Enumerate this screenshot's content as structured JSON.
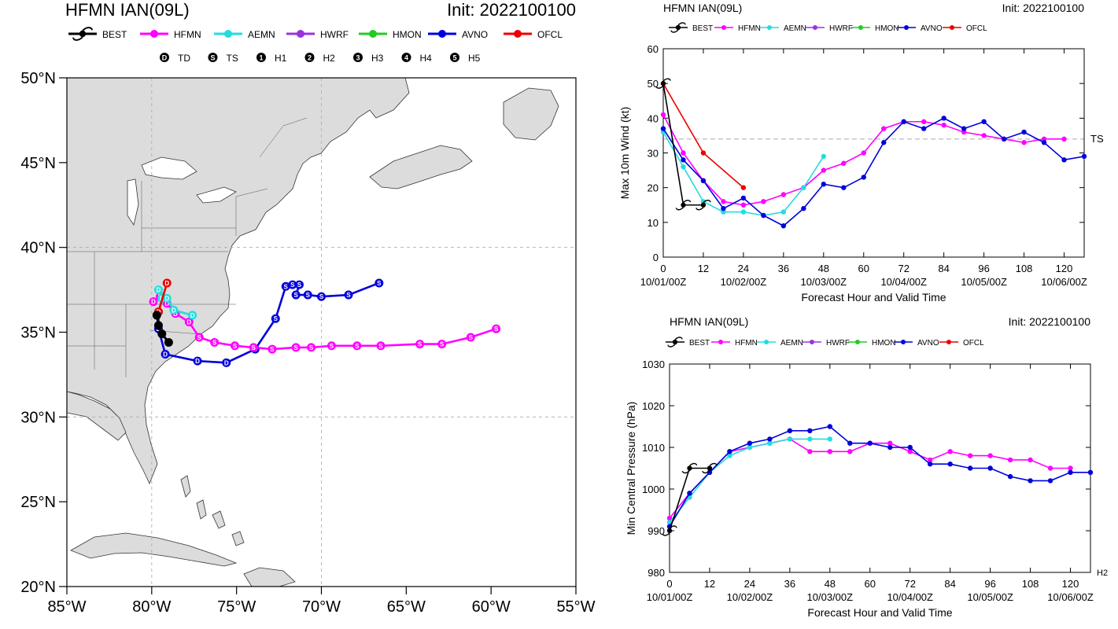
{
  "map_panel": {
    "title_left": "HFMN IAN(09L)",
    "title_right": "Init: 2022100100",
    "legend": [
      "BEST",
      "HFMN",
      "AEMN",
      "HWRF",
      "HMON",
      "AVNO",
      "OFCL"
    ],
    "intensity_legend": [
      {
        "symbol": "D",
        "label": "TD"
      },
      {
        "symbol": "S",
        "label": "TS"
      },
      {
        "symbol": "1",
        "label": "H1"
      },
      {
        "symbol": "2",
        "label": "H2"
      },
      {
        "symbol": "3",
        "label": "H3"
      },
      {
        "symbol": "4",
        "label": "H4"
      },
      {
        "symbol": "5",
        "label": "H5"
      }
    ],
    "lat_labels": [
      "50°N",
      "45°N",
      "40°N",
      "35°N",
      "30°N",
      "25°N",
      "20°N"
    ],
    "lon_labels": [
      "85°W",
      "80°W",
      "75°W",
      "70°W",
      "65°W",
      "60°W",
      "55°W"
    ]
  },
  "colors": {
    "BEST": "#000000",
    "HFMN": "#ff00ff",
    "AEMN": "#22dddd",
    "HWRF": "#9933dd",
    "HMON": "#22cc22",
    "AVNO": "#0000dd",
    "OFCL": "#ee0000",
    "land": "#dcdcdc",
    "ocean": "#ffffff"
  },
  "chart_data": [
    {
      "type": "line",
      "title": "HFMN IAN(09L)",
      "subtitle": "Init: 2022100100",
      "xlabel": "Forecast Hour and Valid Time",
      "ylabel": "Max 10m Wind (kt)",
      "xlim": [
        0,
        126
      ],
      "ylim": [
        0,
        60
      ],
      "xticks": [
        0,
        12,
        24,
        36,
        48,
        60,
        72,
        84,
        96,
        108,
        120
      ],
      "xtick_labels": [
        "0",
        "12",
        "24",
        "36",
        "48",
        "60",
        "72",
        "84",
        "96",
        "108",
        "120"
      ],
      "date_labels": [
        {
          "x": 0,
          "label": "10/01/00Z"
        },
        {
          "x": 24,
          "label": "10/02/00Z"
        },
        {
          "x": 48,
          "label": "10/03/00Z"
        },
        {
          "x": 72,
          "label": "10/04/00Z"
        },
        {
          "x": 96,
          "label": "10/05/00Z"
        },
        {
          "x": 120,
          "label": "10/06/00Z"
        }
      ],
      "yticks": [
        0,
        10,
        20,
        30,
        40,
        50,
        60
      ],
      "reference_line": {
        "y": 34,
        "label": "TS"
      },
      "series": [
        {
          "name": "BEST",
          "x": [
            0,
            6,
            12
          ],
          "y": [
            50,
            15,
            15
          ]
        },
        {
          "name": "HFMN",
          "x": [
            0,
            6,
            12,
            18,
            24,
            30,
            36,
            42,
            48,
            54,
            60,
            66,
            72,
            78,
            84,
            90,
            96,
            102,
            108,
            114,
            120
          ],
          "y": [
            41,
            30,
            22,
            16,
            15,
            16,
            18,
            20,
            25,
            27,
            30,
            37,
            39,
            39,
            38,
            36,
            35,
            34,
            33,
            34,
            34
          ]
        },
        {
          "name": "AEMN",
          "x": [
            0,
            6,
            12,
            18,
            24,
            30,
            36,
            42,
            48
          ],
          "y": [
            36,
            26,
            16,
            13,
            13,
            12,
            13,
            20,
            29
          ]
        },
        {
          "name": "AVNO",
          "x": [
            0,
            6,
            12,
            18,
            24,
            30,
            36,
            42,
            48,
            54,
            60,
            66,
            72,
            78,
            84,
            90,
            96,
            102,
            108,
            114,
            120,
            126
          ],
          "y": [
            37,
            28,
            22,
            14,
            17,
            12,
            9,
            14,
            21,
            20,
            23,
            33,
            39,
            37,
            40,
            37,
            39,
            34,
            36,
            33,
            28,
            29
          ]
        },
        {
          "name": "OFCL",
          "x": [
            0,
            12,
            24
          ],
          "y": [
            50,
            30,
            20
          ]
        }
      ]
    },
    {
      "type": "line",
      "title": "HFMN IAN(09L)",
      "subtitle": "Init: 2022100100",
      "xlabel": "Forecast Hour and Valid Time",
      "ylabel": "Min Central Pressure (hPa)",
      "xlim": [
        0,
        126
      ],
      "ylim": [
        980,
        1030
      ],
      "xticks": [
        0,
        12,
        24,
        36,
        48,
        60,
        72,
        84,
        96,
        108,
        120
      ],
      "xtick_labels": [
        "0",
        "12",
        "24",
        "36",
        "48",
        "60",
        "72",
        "84",
        "96",
        "108",
        "120"
      ],
      "date_labels": [
        {
          "x": 0,
          "label": "10/01/00Z"
        },
        {
          "x": 24,
          "label": "10/02/00Z"
        },
        {
          "x": 48,
          "label": "10/03/00Z"
        },
        {
          "x": 72,
          "label": "10/04/00Z"
        },
        {
          "x": 96,
          "label": "10/05/00Z"
        },
        {
          "x": 120,
          "label": "10/06/00Z"
        }
      ],
      "yticks": [
        980,
        990,
        1000,
        1010,
        1020,
        1030
      ],
      "corner_label": "H2",
      "series": [
        {
          "name": "BEST",
          "x": [
            0,
            6,
            12
          ],
          "y": [
            990,
            1005,
            1005
          ]
        },
        {
          "name": "HFMN",
          "x": [
            0,
            6,
            12,
            18,
            24,
            30,
            36,
            42,
            48,
            54,
            60,
            66,
            72,
            78,
            84,
            90,
            96,
            102,
            108,
            114,
            120
          ],
          "y": [
            993,
            999,
            1004,
            1009,
            1010,
            1011,
            1012,
            1009,
            1009,
            1009,
            1011,
            1011,
            1009,
            1007,
            1009,
            1008,
            1008,
            1007,
            1007,
            1005,
            1005
          ]
        },
        {
          "name": "AEMN",
          "x": [
            0,
            6,
            12,
            18,
            24,
            30,
            36,
            42,
            48
          ],
          "y": [
            992,
            998,
            1004,
            1008,
            1010,
            1011,
            1012,
            1012,
            1012
          ]
        },
        {
          "name": "AVNO",
          "x": [
            0,
            6,
            12,
            18,
            24,
            30,
            36,
            42,
            48,
            54,
            60,
            66,
            72,
            78,
            84,
            90,
            96,
            102,
            108,
            114,
            120,
            126
          ],
          "y": [
            991,
            999,
            1004,
            1009,
            1011,
            1012,
            1014,
            1014,
            1015,
            1011,
            1011,
            1010,
            1010,
            1006,
            1006,
            1005,
            1005,
            1003,
            1002,
            1002,
            1004,
            1004
          ]
        }
      ]
    }
  ]
}
